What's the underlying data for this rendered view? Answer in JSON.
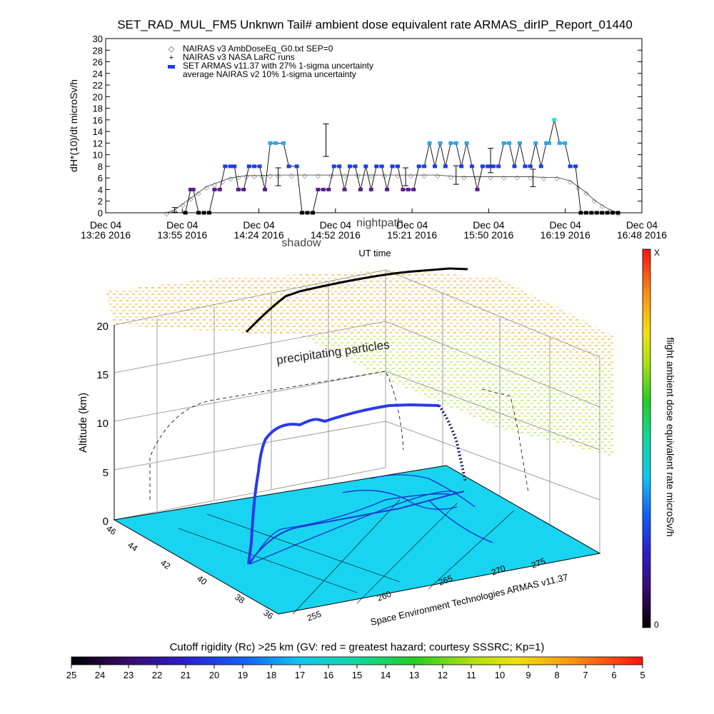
{
  "title": "SET_RAD_MUL_FM5 Unknwn Tail#  ambient dose equivalent rate ARMAS_dirIP_Report_01440",
  "chart_data": [
    {
      "type": "line",
      "ylabel": "dH*(10)/dt microSv/h",
      "xlabel": "UT time",
      "ylim": [
        0,
        30
      ],
      "yticks": [
        "0",
        "2",
        "4",
        "6",
        "8",
        "10",
        "12",
        "14",
        "16",
        "18",
        "20",
        "22",
        "24",
        "26",
        "28",
        "30"
      ],
      "xticks": [
        {
          "date": "Dec 04",
          "time": "13:26 2016"
        },
        {
          "date": "Dec 04",
          "time": "13:55 2016"
        },
        {
          "date": "Dec 04",
          "time": "14:24 2016"
        },
        {
          "date": "Dec 04",
          "time": "14:52 2016"
        },
        {
          "date": "Dec 04",
          "time": "15:21 2016"
        },
        {
          "date": "Dec 04",
          "time": "15:50 2016"
        },
        {
          "date": "Dec 04",
          "time": "16:19 2016"
        },
        {
          "date": "Dec 04",
          "time": "16:48 2016"
        }
      ],
      "overlay_labels": [
        "nightpath",
        "shadow"
      ],
      "legend_position": "top-left",
      "legend": [
        "NAIRAS v3 AmbDoseEq_G0.txt SEP=0",
        "NAIRAS v3 NASA LaRC runs",
        "SET ARMAS v11.37 with 27% 1-sigma uncertainty",
        "average NAIRAS v2 10% 1-sigma uncertainty"
      ],
      "series": [
        {
          "name": "NAIRAS v3 AmbDoseEq_G0.txt SEP=0",
          "x_minutes": [
            46,
            52,
            58,
            64,
            70,
            76,
            82,
            88,
            94,
            100,
            106,
            112,
            118,
            124,
            130,
            140,
            150,
            160,
            170,
            180,
            190,
            200,
            210,
            220,
            230,
            240,
            250,
            260,
            270,
            280,
            290,
            300,
            310,
            320,
            330,
            340,
            350,
            356,
            362,
            368,
            374,
            380,
            386
          ],
          "values": [
            0,
            0.5,
            1.5,
            2.5,
            3.5,
            4.5,
            5,
            5.5,
            6,
            6.2,
            6.4,
            6.4,
            6.4,
            6.5,
            6.5,
            6.5,
            6.5,
            6.5,
            6.5,
            6.5,
            6.5,
            6.5,
            6.5,
            6.5,
            6.5,
            6.5,
            6.5,
            6.3,
            6.2,
            6.2,
            6.2,
            6.2,
            6.2,
            6.2,
            6.1,
            6.1,
            5.5,
            4.5,
            3.5,
            2.2,
            1.3,
            0.5,
            0
          ]
        },
        {
          "name": "NAIRAS v3 NASA LaRC runs",
          "x_minutes": [
            52,
            130,
            166,
            226,
            264,
            290,
            322
          ],
          "values": [
            0.5,
            6.2,
            12.5,
            6.2,
            6.5,
            9,
            6
          ]
        },
        {
          "name": "SET ARMAS v11.37 with 27% 1-sigma uncertainty",
          "x_minutes": [
            60,
            64,
            66,
            70,
            74,
            78,
            82,
            86,
            90,
            94,
            97,
            100,
            104,
            108,
            112,
            116,
            120,
            124,
            128,
            134,
            138,
            144,
            148,
            152,
            156,
            160,
            164,
            168,
            172,
            176,
            180,
            184,
            188,
            192,
            196,
            200,
            204,
            208,
            212,
            216,
            220,
            224,
            228,
            232,
            236,
            240,
            244,
            248,
            252,
            256,
            260,
            264,
            268,
            272,
            276,
            280,
            284,
            288,
            292,
            296,
            300,
            304,
            308,
            312,
            316,
            320,
            324,
            328,
            332,
            334,
            338,
            342,
            346,
            350,
            354,
            358,
            362,
            366,
            370,
            374,
            378,
            382,
            386
          ],
          "values": [
            0,
            4,
            4,
            0,
            0,
            0,
            4,
            4,
            8,
            8,
            8,
            4,
            4,
            8,
            8,
            8,
            4,
            12,
            12,
            12,
            8,
            8,
            0,
            0,
            0,
            4,
            4,
            4,
            8,
            8,
            4,
            8,
            8,
            4,
            8,
            4,
            8,
            8,
            4,
            8,
            8,
            4,
            4,
            4,
            8,
            8,
            12,
            8,
            12,
            8,
            12,
            12,
            8,
            12,
            8,
            4,
            8,
            8,
            8,
            8,
            12,
            12,
            8,
            12,
            8,
            8,
            12,
            8,
            12,
            12,
            16,
            12,
            12,
            8,
            8,
            0,
            0,
            0,
            0,
            0,
            0,
            0,
            0
          ]
        }
      ]
    },
    {
      "type": "scatter",
      "subtype": "3d-flight-track",
      "zlabel": "Altitude (km)",
      "zticks": [
        "0",
        "5",
        "10",
        "15",
        "20"
      ],
      "lat_ticks": [
        "46",
        "44",
        "42",
        "40",
        "38",
        "36"
      ],
      "lon_ticks": [
        "255",
        "260",
        "265",
        "270",
        "275"
      ],
      "colorbar": {
        "label": "flight ambient dose equivalent rate microSv/h",
        "top": "X",
        "bottom": "0"
      },
      "annotations": [
        "precipitating particles"
      ],
      "credit": "Space Environment Technologies ARMAS v11.37"
    },
    {
      "type": "heatmap",
      "subtype": "colorbar",
      "label": "Cutoff rigidity (Rc) >25 km (GV: red = greatest hazard; courtesy SSSRC; Kp=1)",
      "ticks": [
        "25",
        "24",
        "23",
        "22",
        "21",
        "20",
        "19",
        "18",
        "17",
        "16",
        "15",
        "14",
        "13",
        "12",
        "11",
        "10",
        "9",
        "8",
        "7",
        "6",
        "5"
      ]
    }
  ]
}
